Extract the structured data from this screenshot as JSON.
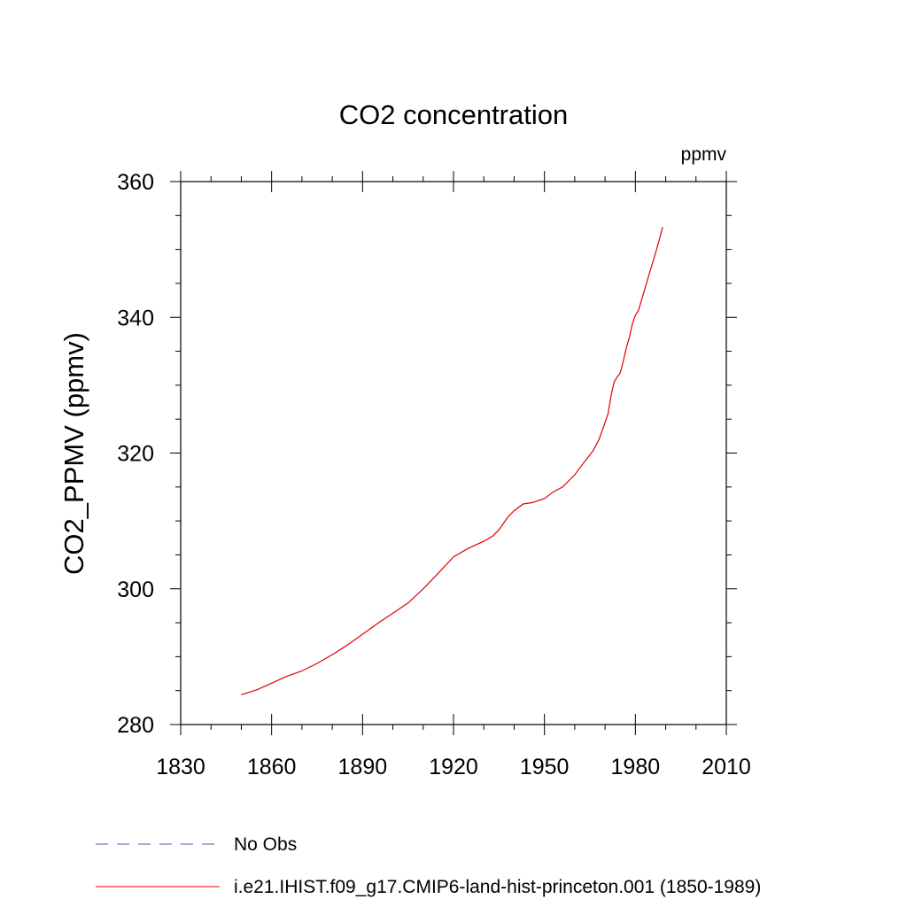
{
  "chart_data": {
    "type": "line",
    "title": "CO2 concentration",
    "units": "ppmv",
    "xlabel": "",
    "ylabel": "CO2_PPMV  (ppmv)",
    "xlim": [
      1830,
      2010
    ],
    "ylim": [
      280,
      360
    ],
    "x_ticks": [
      1830,
      1860,
      1890,
      1920,
      1950,
      1980,
      2010
    ],
    "y_ticks": [
      280,
      300,
      320,
      340,
      360
    ],
    "grid": false,
    "legend_position": "bottom",
    "series": [
      {
        "name": "No Obs",
        "style": "dashed",
        "color": "#5b4fa6",
        "x": [],
        "y": []
      },
      {
        "name": "i.e21.IHIST.f09_g17.CMIP6-land-hist-princeton.001 (1850-1989)",
        "style": "solid",
        "color": "#e00000",
        "x": [
          1850,
          1855,
          1860,
          1865,
          1870,
          1875,
          1880,
          1885,
          1890,
          1895,
          1900,
          1905,
          1910,
          1915,
          1920,
          1925,
          1930,
          1933,
          1935,
          1938,
          1940,
          1943,
          1946,
          1950,
          1953,
          1956,
          1960,
          1963,
          1966,
          1968,
          1970,
          1971,
          1972,
          1973,
          1974,
          1975,
          1976,
          1977,
          1978,
          1979,
          1980,
          1981,
          1982,
          1983,
          1984,
          1985,
          1986,
          1987,
          1988,
          1989
        ],
        "y": [
          284.4,
          285.1,
          286.1,
          287.1,
          287.9,
          289.0,
          290.3,
          291.7,
          293.3,
          294.9,
          296.4,
          297.9,
          300.0,
          302.3,
          304.7,
          306.0,
          307.0,
          307.8,
          308.7,
          310.6,
          311.5,
          312.5,
          312.7,
          313.3,
          314.3,
          315.0,
          316.8,
          318.6,
          320.3,
          322.0,
          324.5,
          325.8,
          328.5,
          330.5,
          331.2,
          331.8,
          333.5,
          335.5,
          337.0,
          339.0,
          340.3,
          341.0,
          342.5,
          344.0,
          345.5,
          347.0,
          348.5,
          350.0,
          351.6,
          353.3
        ]
      }
    ]
  }
}
